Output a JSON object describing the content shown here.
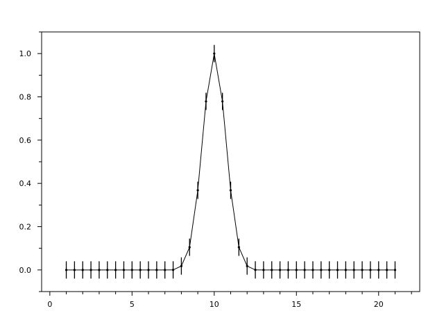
{
  "chart_data": {
    "type": "line",
    "title": "",
    "xlabel": "",
    "ylabel": "",
    "xlim": [
      -0.5,
      22.5
    ],
    "ylim": [
      -0.1,
      1.1
    ],
    "grid": false,
    "x_ticks": [
      0,
      5,
      10,
      15,
      20
    ],
    "x_tick_labels": [
      "0",
      "5",
      "10",
      "15",
      "20"
    ],
    "y_ticks": [
      0.0,
      0.2,
      0.4,
      0.6,
      0.8,
      1.0
    ],
    "y_tick_labels": [
      "0.0",
      "0.2",
      "0.4",
      "0.6",
      "0.8",
      "1.0"
    ],
    "series": [
      {
        "x": [
          1,
          1.5,
          2,
          2.5,
          3,
          3.5,
          4,
          4.5,
          5,
          5.5,
          6,
          6.5,
          7,
          7.5,
          8,
          8.5,
          9,
          9.5,
          10,
          10.5,
          11,
          11.5,
          12,
          12.5,
          13,
          13.5,
          14,
          14.5,
          15,
          15.5,
          16,
          16.5,
          17,
          17.5,
          18,
          18.5,
          19,
          19.5,
          20,
          20.5,
          21
        ],
        "y": [
          0,
          0,
          0,
          0,
          0,
          0,
          0,
          0,
          0,
          0,
          0,
          0,
          0,
          0.0002,
          0.018,
          0.105,
          0.368,
          0.779,
          1.0,
          0.779,
          0.368,
          0.105,
          0.018,
          0.0002,
          0,
          0,
          0,
          0,
          0,
          0,
          0,
          0,
          0,
          0,
          0,
          0,
          0,
          0,
          0,
          0,
          0
        ],
        "error": 0.04,
        "color": "#000000"
      }
    ]
  }
}
